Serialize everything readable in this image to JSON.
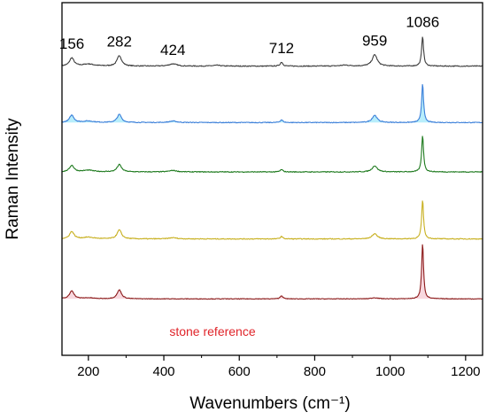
{
  "chart_data": {
    "type": "line",
    "title": "",
    "xlabel": "Wavenumbers (cm⁻¹)",
    "ylabel": "Raman Intensity",
    "xlim": [
      130,
      1245
    ],
    "xticks": [
      200,
      400,
      600,
      800,
      1000,
      1200
    ],
    "yticks": [],
    "grid": false,
    "legend": "none",
    "peak_labels": [
      {
        "text": "156",
        "x": 156
      },
      {
        "text": "282",
        "x": 282
      },
      {
        "text": "424",
        "x": 424
      },
      {
        "text": "712",
        "x": 712
      },
      {
        "text": "959",
        "x": 959
      },
      {
        "text": "1086",
        "x": 1086
      }
    ],
    "annotation": {
      "text": "stone reference",
      "color": "#e0242a"
    },
    "series": [
      {
        "color": "#3c3c3c",
        "baseline": 0.82,
        "noise": 0.55,
        "peaks": [
          [
            156,
            10,
            7
          ],
          [
            200,
            2.5,
            18
          ],
          [
            282,
            13,
            7
          ],
          [
            424,
            2.8,
            12
          ],
          [
            540,
            1.0,
            12
          ],
          [
            712,
            5,
            4
          ],
          [
            880,
            1.2,
            15
          ],
          [
            959,
            14,
            8
          ],
          [
            1086,
            37,
            3
          ]
        ]
      },
      {
        "color": "#3a7fd9",
        "fill": "#7ee0f7",
        "baseline": 0.66,
        "noise": 0.5,
        "peaks": [
          [
            156,
            9,
            7
          ],
          [
            200,
            1.8,
            18
          ],
          [
            282,
            10,
            7
          ],
          [
            424,
            1.8,
            12
          ],
          [
            712,
            3.5,
            4
          ],
          [
            959,
            9,
            8
          ],
          [
            1086,
            48,
            3
          ]
        ]
      },
      {
        "color": "#1e7a1e",
        "baseline": 0.52,
        "noise": 0.5,
        "peaks": [
          [
            156,
            8,
            7
          ],
          [
            200,
            2.0,
            18
          ],
          [
            282,
            9,
            7
          ],
          [
            424,
            1.8,
            12
          ],
          [
            712,
            3.0,
            4
          ],
          [
            959,
            7.5,
            8
          ],
          [
            1086,
            45,
            3
          ]
        ]
      },
      {
        "color": "#c8b020",
        "baseline": 0.33,
        "noise": 0.5,
        "peaks": [
          [
            156,
            9,
            7
          ],
          [
            200,
            2.0,
            18
          ],
          [
            282,
            11,
            7
          ],
          [
            424,
            1.5,
            12
          ],
          [
            712,
            3.0,
            4
          ],
          [
            959,
            6.5,
            8
          ],
          [
            1086,
            48,
            3
          ]
        ]
      },
      {
        "color": "#8c1a1a",
        "fill": "#f2b8c4",
        "baseline": 0.16,
        "noise": 0.4,
        "peaks": [
          [
            156,
            10,
            7
          ],
          [
            200,
            1.2,
            18
          ],
          [
            282,
            11,
            7
          ],
          [
            712,
            4.0,
            4
          ],
          [
            959,
            1.5,
            10
          ],
          [
            1086,
            68,
            3
          ]
        ]
      }
    ]
  }
}
